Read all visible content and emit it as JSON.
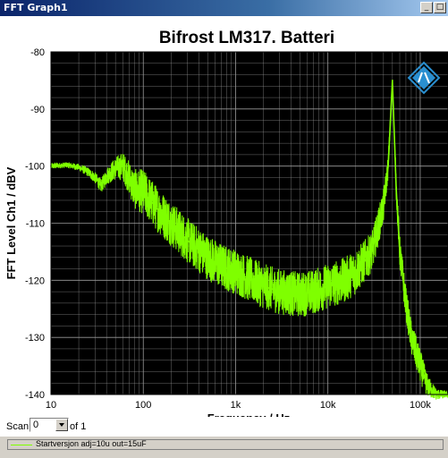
{
  "window": {
    "title": "FFT Graph1"
  },
  "controls": {
    "scan_label": "Scan",
    "scan_value": "0",
    "scan_of": "of 1"
  },
  "legend": {
    "entry": "Startversjon adj=10u out=15uF"
  },
  "colors": {
    "trace": "#7fff00",
    "plot_bg": "#000000",
    "grid": "#9a9a9a"
  },
  "chart_data": {
    "type": "line",
    "title": "Bifrost LM317. Batteri",
    "xlabel": "Frequency / Hz",
    "ylabel": "FFT Level Ch1 / dBV",
    "x_scale": "log",
    "xlim": [
      10,
      200000
    ],
    "ylim": [
      -140,
      -80
    ],
    "x_ticks": [
      10,
      100,
      1000,
      10000,
      100000
    ],
    "x_tick_labels": [
      "10",
      "100",
      "1k",
      "10k",
      "100k"
    ],
    "y_ticks": [
      -140,
      -130,
      -120,
      -110,
      -100,
      -90,
      -80
    ],
    "y_tick_labels": [
      "-140",
      "-130",
      "-120",
      "-110",
      "-100",
      "-90",
      "-80"
    ],
    "grid": true,
    "series": [
      {
        "name": "Startversjon adj=10u out=15uF",
        "x": [
          10,
          15,
          20,
          25,
          30,
          35,
          40,
          50,
          60,
          70,
          80,
          100,
          150,
          200,
          300,
          500,
          700,
          1000,
          1500,
          2000,
          3000,
          5000,
          7000,
          10000,
          15000,
          20000,
          30000,
          40000,
          45000,
          50000,
          55000,
          60000,
          70000,
          80000,
          100000,
          120000,
          150000,
          200000
        ],
        "y": [
          -100,
          -99.8,
          -100.2,
          -101,
          -102,
          -103.5,
          -101.8,
          -100.4,
          -100,
          -102,
          -104,
          -104.5,
          -108,
          -110,
          -113,
          -116,
          -117.5,
          -118.5,
          -120,
          -121,
          -122,
          -122.5,
          -122,
          -121,
          -120,
          -118.5,
          -115,
          -107,
          -100,
          -85,
          -104,
          -115,
          -124,
          -130,
          -135,
          -138.5,
          -140,
          -140
        ],
        "envelope": [
          0.5,
          0.5,
          0.6,
          0.8,
          1,
          1.2,
          1.5,
          2,
          2.5,
          3,
          3.5,
          4,
          4,
          4,
          4,
          4,
          4,
          4,
          4,
          4,
          4,
          4,
          4,
          4,
          4,
          4,
          3.5,
          3,
          2,
          0.5,
          2,
          3,
          3,
          3,
          3,
          2,
          1,
          0.5
        ]
      }
    ]
  }
}
